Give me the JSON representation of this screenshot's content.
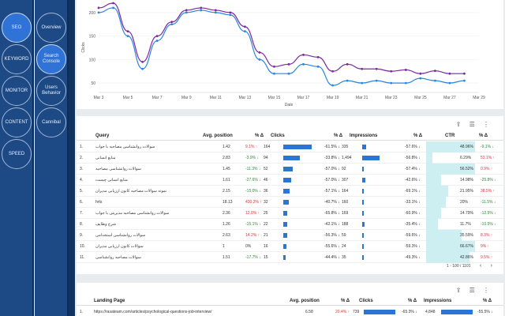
{
  "nav_primary": [
    {
      "label": "SEO",
      "active": true
    },
    {
      "label": "KEYWORD",
      "active": false
    },
    {
      "label": "MONITOR",
      "active": false
    },
    {
      "label": "CONTENT",
      "active": false
    },
    {
      "label": "SPEED",
      "active": false
    }
  ],
  "nav_secondary": [
    {
      "label": "Overview",
      "active": false
    },
    {
      "label": "Search Console",
      "active": true
    },
    {
      "label": "Users Behavior",
      "active": false
    },
    {
      "label": "Cannibal",
      "active": false
    }
  ],
  "chart_data": {
    "type": "line",
    "x": [
      "Mar 3",
      "Mar 4",
      "Mar 5",
      "Mar 6",
      "Mar 7",
      "Mar 8",
      "Mar 9",
      "Mar 10",
      "Mar 11",
      "Mar 12",
      "Mar 13",
      "Mar 14",
      "Mar 15",
      "Mar 16",
      "Mar 17",
      "Mar 18",
      "Mar 19",
      "Mar 20",
      "Mar 21",
      "Mar 22",
      "Mar 23",
      "Mar 24",
      "Mar 25",
      "Mar 26",
      "Mar 27",
      "Mar 28"
    ],
    "xticks": [
      "Mar 3",
      "Mar 5",
      "Mar 7",
      "Mar 9",
      "Mar 11",
      "Mar 13",
      "Mar 15",
      "Mar 17",
      "Mar 19",
      "Mar 21",
      "Mar 23",
      "Mar 25",
      "Mar 27",
      "Mar 29"
    ],
    "yticks": [
      "50",
      "100",
      "150",
      "200"
    ],
    "ylim": [
      30,
      220
    ],
    "ylabel": "Clicks",
    "xlabel": "Date",
    "series": [
      {
        "color": "#7b2a9e",
        "values": [
          210,
          220,
          160,
          95,
          150,
          180,
          205,
          210,
          205,
          200,
          170,
          115,
          85,
          90,
          110,
          105,
          75,
          90,
          80,
          80,
          75,
          78,
          70,
          76,
          70,
          70
        ]
      },
      {
        "color": "#2a86e0",
        "values": [
          200,
          210,
          150,
          80,
          140,
          175,
          200,
          205,
          200,
          195,
          160,
          100,
          70,
          70,
          90,
          85,
          45,
          55,
          50,
          55,
          50,
          50,
          60,
          55,
          50,
          55
        ]
      }
    ]
  },
  "table": {
    "headers": {
      "query": "Query",
      "avg_position": "Avg. position",
      "pos_delta": "% Δ",
      "clicks": "Clicks",
      "clicks_delta": "% Δ",
      "impressions": "Impressions",
      "imp_delta": "% Δ",
      "ctr": "CTR",
      "ctr_delta": "% Δ"
    },
    "rows": [
      {
        "n": "1.",
        "q": "سوالات روانشناسی مصاحبه با جواب",
        "pos": "1.42",
        "pd": "9.1% ↑",
        "pdc": "red",
        "c": "164",
        "cw": 1.0,
        "cd": "-61.5% ↓",
        "i": "335",
        "iw": 0.22,
        "id": "-57.6% ↓",
        "ctr": "48.96%",
        "ctrw": 1.0,
        "ctrd": "-9.1% ↓"
      },
      {
        "n": "2.",
        "q": "منابع انسانی",
        "pos": "2.83",
        "pd": "-3.9% ↓",
        "pdc": "green",
        "c": "94",
        "cw": 0.57,
        "cd": "-33.8% ↓",
        "i": "1,494",
        "iw": 1.0,
        "id": "-56.8% ↓",
        "ctr": "6.29%",
        "ctrw": 0.13,
        "ctrd": "53.1% ↑"
      },
      {
        "n": "3.",
        "q": "سوالات روانشناسی مصاحبه",
        "pos": "1.45",
        "pd": "-11.3% ↓",
        "pdc": "green",
        "c": "52",
        "cw": 0.32,
        "cd": "-57.0% ↓",
        "i": "92",
        "iw": 0.06,
        "id": "-57.4% ↓",
        "ctr": "56.52%",
        "ctrw": 1.0,
        "ctrd": "0.9% ↑"
      },
      {
        "n": "4.",
        "q": "منابع انسانی چیست",
        "pos": "1.61",
        "pdc": "green",
        "pd": "-27.6% ↓",
        "c": "46",
        "cw": 0.28,
        "cd": "-57.0% ↓",
        "i": "307",
        "iw": 0.2,
        "id": "-42.6% ↓",
        "ctr": "14.98%",
        "ctrw": 0.31,
        "ctrd": "-25.8% ↓"
      },
      {
        "n": "5.",
        "q": "نمونه سوالات مصاحبه کانون ارزیابی مدیران",
        "pos": "2.15",
        "pd": "-15.0% ↓",
        "pdc": "green",
        "c": "36",
        "cw": 0.22,
        "cd": "-57.1% ↓",
        "i": "164",
        "iw": 0.11,
        "id": "-69.1% ↓",
        "ctr": "21.95%",
        "ctrw": 0.45,
        "ctrd": "38.5% ↑"
      },
      {
        "n": "6.",
        "q": "hrts",
        "pos": "18.13",
        "pd": "430.2% ↑",
        "pdc": "red",
        "c": "32",
        "cw": 0.2,
        "cd": "-40.7% ↓",
        "i": "160",
        "iw": 0.11,
        "id": "-33.1% ↓",
        "ctr": "20%",
        "ctrw": 0.41,
        "ctrd": "-11.5% ↓"
      },
      {
        "n": "7.",
        "q": "سوالات روانشناسی مصاحبه مدیریتی با جواب",
        "pos": "2.36",
        "pd": "12.0% ↑",
        "pdc": "red",
        "c": "25",
        "cw": 0.15,
        "cd": "-65.8% ↓",
        "i": "169",
        "iw": 0.11,
        "id": "-60.9% ↓",
        "ctr": "14.79%",
        "ctrw": 0.3,
        "ctrd": "-12.5% ↓"
      },
      {
        "n": "8.",
        "q": "شرح وظایف",
        "pos": "1.26",
        "pd": "-15.1% ↓",
        "pdc": "green",
        "c": "22",
        "cw": 0.13,
        "cd": "-42.1% ↓",
        "i": "188",
        "iw": 0.13,
        "id": "-35.4% ↓",
        "ctr": "11.7%",
        "ctrw": 0.24,
        "ctrd": "-10.5% ↓"
      },
      {
        "n": "9.",
        "q": "سوالات روانشناسی استخدامی",
        "pos": "2.63",
        "pd": "14.2% ↑",
        "pdc": "red",
        "c": "21",
        "cw": 0.13,
        "cd": "-56.3% ↓",
        "i": "59",
        "iw": 0.04,
        "id": "-59.6% ↓",
        "ctr": "35.59%",
        "ctrw": 0.73,
        "ctrd": "8.3% ↑"
      },
      {
        "n": "10.",
        "q": "سوالات کانون ارزیابی مدیران",
        "pos": "1",
        "pd": "0%",
        "pdc": "",
        "c": "16",
        "cw": 0.1,
        "cd": "-55.6% ↓",
        "i": "24",
        "iw": 0.02,
        "id": "-59.3% ↓",
        "ctr": "66.67%",
        "ctrw": 1.0,
        "ctrd": "9% ↑"
      },
      {
        "n": "11.",
        "q": "سوالات مصاحبه روانشناسی",
        "pos": "1.51",
        "pd": "-17.7% ↓",
        "pdc": "green",
        "c": "15",
        "cw": 0.09,
        "cd": "-44.4% ↓",
        "i": "35",
        "iw": 0.02,
        "id": "-49.3% ↓",
        "ctr": "42.86%",
        "ctrw": 0.88,
        "ctrd": "9.5% ↑"
      }
    ],
    "pagination": "1 - 100 / 1101",
    "prev": "‹",
    "next": "›"
  },
  "table2": {
    "headers": {
      "page": "Landing Page",
      "avg_position": "Avg. position",
      "pos_delta": "% Δ",
      "clicks": "Clicks",
      "clicks_delta": "% Δ",
      "impressions": "Impressions",
      "imp_delta": "% Δ"
    },
    "row": {
      "n": "1.",
      "url": "https://rasateam.com/articles/psychological-questions-job-interview/",
      "pos": "6.58",
      "pd": "20.4% ↑",
      "c": "739",
      "cd": "-65.3% ↓",
      "i": "4,848",
      "id": "-55.5% ↓"
    }
  }
}
